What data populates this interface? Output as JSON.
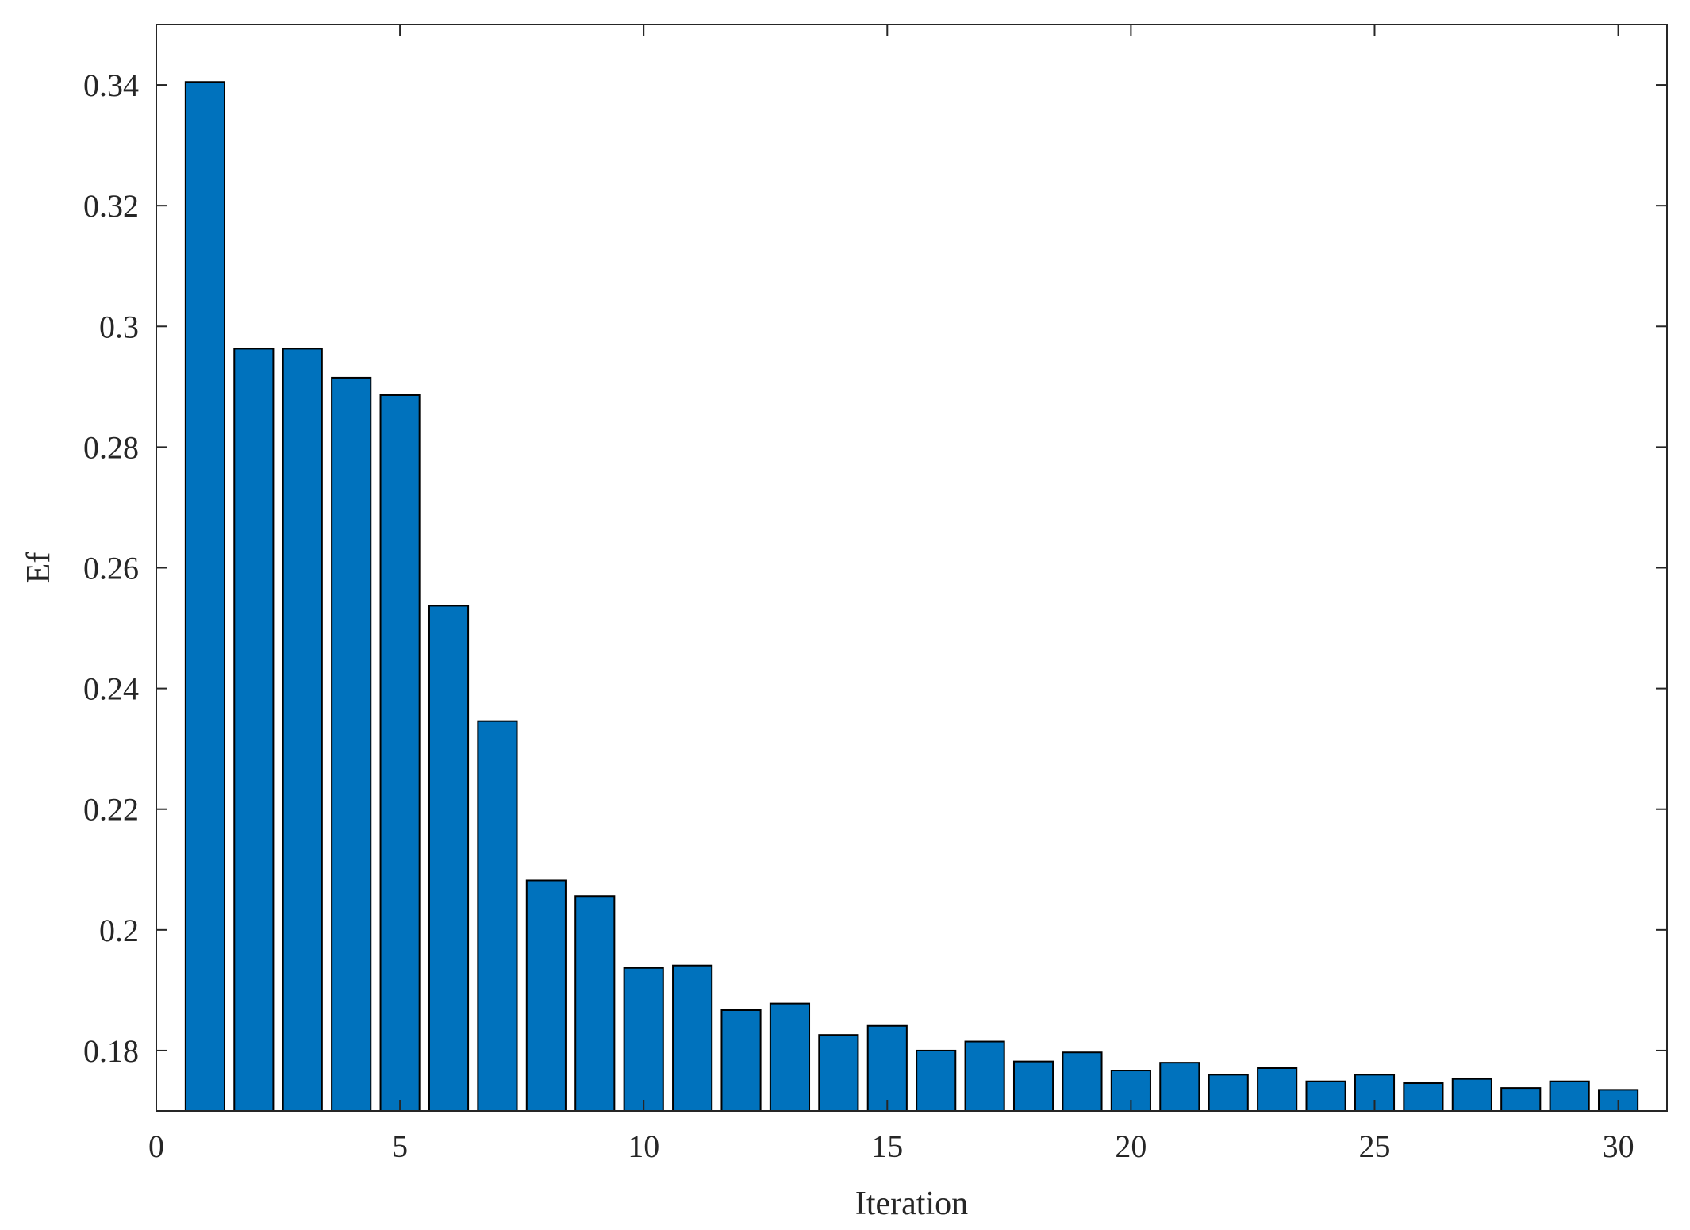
{
  "chart_data": {
    "type": "bar",
    "xlabel": "Iteration",
    "ylabel": "Ef",
    "xlim": [
      0,
      31
    ],
    "ylim": [
      0.17,
      0.35
    ],
    "xticks": [
      "0",
      "5",
      "10",
      "15",
      "20",
      "25",
      "30"
    ],
    "yticks": [
      "0.18",
      "0.2",
      "0.22",
      "0.24",
      "0.26",
      "0.28",
      "0.3",
      "0.32",
      "0.34"
    ],
    "grid": false,
    "bar_color": "#0072BD",
    "categories": [
      1,
      2,
      3,
      4,
      5,
      6,
      7,
      8,
      9,
      10,
      11,
      12,
      13,
      14,
      15,
      16,
      17,
      18,
      19,
      20,
      21,
      22,
      23,
      24,
      25,
      26,
      27,
      28,
      29,
      30
    ],
    "values": [
      0.3405,
      0.2963,
      0.2963,
      0.2915,
      0.2886,
      0.2537,
      0.2346,
      0.2082,
      0.2056,
      0.1937,
      0.1941,
      0.1867,
      0.1878,
      0.1826,
      0.1841,
      0.18,
      0.1815,
      0.1782,
      0.1797,
      0.1767,
      0.178,
      0.176,
      0.1771,
      0.1749,
      0.176,
      0.1746,
      0.1753,
      0.1738,
      0.1749,
      0.1735
    ]
  }
}
